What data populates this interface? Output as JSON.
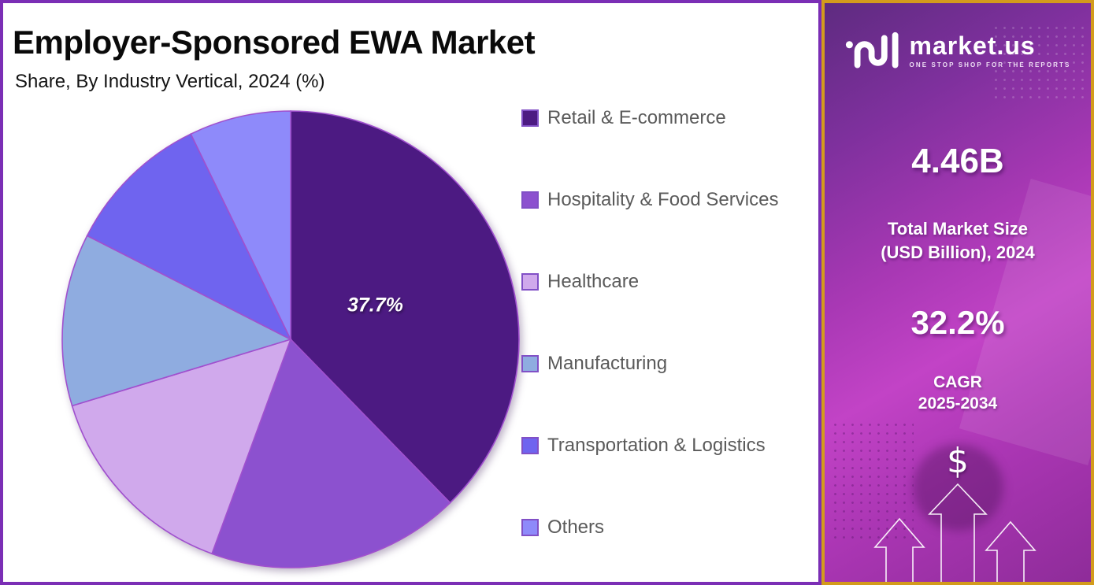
{
  "header": {
    "title": "Employer-Sponsored EWA Market",
    "subtitle": "Share, By Industry Vertical, 2024 (%)"
  },
  "chart_data": {
    "type": "pie",
    "title": "Employer-Sponsored EWA Market",
    "subtitle": "Share, By Industry Vertical, 2024 (%)",
    "categories": [
      "Retail & E-commerce",
      "Hospitality & Food Services",
      "Healthcare",
      "Manufacturing",
      "Transportation & Logistics",
      "Others"
    ],
    "values": [
      37.7,
      17.9,
      14.7,
      12.2,
      10.3,
      7.2
    ],
    "unit": "%",
    "colors": [
      "#4C1A82",
      "#8C51CF",
      "#D0A9EC",
      "#8FACE0",
      "#6F64EF",
      "#8E8AFA"
    ],
    "slice_border_color": "#A050CE",
    "start_angle_deg": 0,
    "direction": "clockwise",
    "legend_position": "right",
    "data_labels": [
      {
        "slice": 0,
        "text": "37.7%"
      }
    ]
  },
  "sidebar": {
    "brand_name": "market.us",
    "brand_tagline": "ONE STOP SHOP FOR THE REPORTS",
    "stat1_value": "4.46B",
    "stat1_label_line1": "Total Market Size",
    "stat1_label_line2": "(USD Billion), 2024",
    "stat2_value": "32.2%",
    "stat2_label_line1": "CAGR",
    "stat2_label_line2": "2025-2034",
    "dollar_symbol": "$"
  },
  "colors": {
    "main_border": "#7B2EB5",
    "sidebar_border": "#D39B1C",
    "legend_text": "#5A5A5A",
    "legend_swatch_border": "#8150C6"
  }
}
